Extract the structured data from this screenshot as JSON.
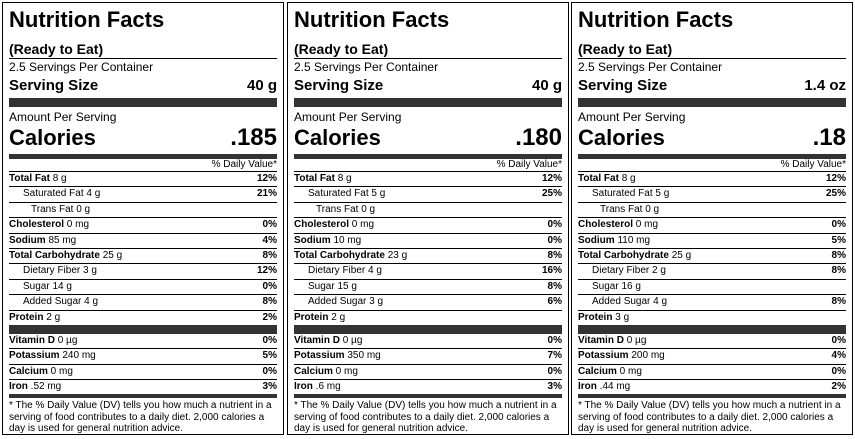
{
  "labels": [
    {
      "title": "Nutrition Facts",
      "subtitle": "(Ready to Eat)",
      "servings": "2.5 Servings Per Container",
      "serving_size_label": "Serving Size",
      "serving_size_value": "40 g",
      "amount_per_serving": "Amount Per Serving",
      "calories_label": "Calories",
      "calories_value": ".185",
      "dv_header": "% Daily Value*",
      "nutrients": [
        {
          "name": "Total Fat",
          "amount": " 8 g",
          "dv": "12%"
        },
        {
          "name": "Saturated Fat 4 g",
          "amount": "",
          "dv": "21%"
        },
        {
          "name": "Trans Fat 0 g",
          "amount": "",
          "dv": ""
        },
        {
          "name": "Cholesterol",
          "amount": " 0 mg",
          "dv": "0%"
        },
        {
          "name": "Sodium",
          "amount": " 85 mg",
          "dv": "4%"
        },
        {
          "name": "Total Carbohydrate",
          "amount": " 25 g",
          "dv": "8%"
        },
        {
          "name": "Dietary Fiber 3 g",
          "amount": "",
          "dv": "12%"
        },
        {
          "name": "Sugar 14 g",
          "amount": "",
          "dv": "0%"
        },
        {
          "name": "Added Sugar 4 g",
          "amount": "",
          "dv": "8%"
        },
        {
          "name": "Protein",
          "amount": " 2 g",
          "dv": "2%"
        }
      ],
      "vitamins": [
        {
          "name": "Vitamin D",
          "amount": " 0 µg",
          "dv": "0%"
        },
        {
          "name": "Potassium",
          "amount": " 240 mg",
          "dv": "5%"
        },
        {
          "name": "Calcium",
          "amount": " 0 mg",
          "dv": "0%"
        },
        {
          "name": "Iron",
          "amount": " .52 mg",
          "dv": "3%"
        }
      ],
      "footnote": "* The % Daily Value (DV) tells you how much a nutrient in a serving of food contributes to a daily diet. 2,000 calories a day is used for general nutrition advice."
    },
    {
      "title": "Nutrition Facts",
      "subtitle": "(Ready to Eat)",
      "servings": "2.5 Servings Per Container",
      "serving_size_label": "Serving Size",
      "serving_size_value": "40 g",
      "amount_per_serving": "Amount Per Serving",
      "calories_label": "Calories",
      "calories_value": ".180",
      "dv_header": "% Daily Value*",
      "nutrients": [
        {
          "name": "Total Fat",
          "amount": " 8 g",
          "dv": "12%"
        },
        {
          "name": "Saturated Fat 5 g",
          "amount": "",
          "dv": "25%"
        },
        {
          "name": "Trans Fat 0 g",
          "amount": "",
          "dv": ""
        },
        {
          "name": "Cholesterol",
          "amount": " 0 mg",
          "dv": "0%"
        },
        {
          "name": "Sodium",
          "amount": " 10 mg",
          "dv": "0%"
        },
        {
          "name": "Total Carbohydrate",
          "amount": " 23 g",
          "dv": "8%"
        },
        {
          "name": "Dietary Fiber 4 g",
          "amount": "",
          "dv": "16%"
        },
        {
          "name": "Sugar 15 g",
          "amount": "",
          "dv": "8%"
        },
        {
          "name": "Added Sugar 3 g",
          "amount": "",
          "dv": "6%"
        },
        {
          "name": "Protein",
          "amount": " 2 g",
          "dv": ""
        }
      ],
      "vitamins": [
        {
          "name": "Vitamin D",
          "amount": " 0 µg",
          "dv": "0%"
        },
        {
          "name": "Potassium",
          "amount": " 350 mg",
          "dv": "7%"
        },
        {
          "name": "Calcium",
          "amount": " 0 mg",
          "dv": "0%"
        },
        {
          "name": "Iron",
          "amount": " .6 mg",
          "dv": "3%"
        }
      ],
      "footnote": "* The % Daily Value (DV) tells you how much a nutrient in a serving of food contributes to a daily diet. 2,000 calories a day is used for general nutrition advice."
    },
    {
      "title": "Nutrition Facts",
      "subtitle": "(Ready to Eat)",
      "servings": "2.5 Servings Per Container",
      "serving_size_label": "Serving Size",
      "serving_size_value": "1.4 oz",
      "amount_per_serving": "Amount Per Serving",
      "calories_label": "Calories",
      "calories_value": ".18",
      "dv_header": "% Daily Value*",
      "nutrients": [
        {
          "name": "Total Fat",
          "amount": " 8 g",
          "dv": "12%"
        },
        {
          "name": "Saturated Fat 5 g",
          "amount": "",
          "dv": "25%"
        },
        {
          "name": "Trans Fat 0 g",
          "amount": "",
          "dv": ""
        },
        {
          "name": "Cholesterol",
          "amount": " 0 mg",
          "dv": "0%"
        },
        {
          "name": "Sodium",
          "amount": " 110 mg",
          "dv": "5%"
        },
        {
          "name": "Total Carbohydrate",
          "amount": " 25 g",
          "dv": "8%"
        },
        {
          "name": "Dietary Fiber 2 g",
          "amount": "",
          "dv": "8%"
        },
        {
          "name": "Sugar 16 g",
          "amount": "",
          "dv": ""
        },
        {
          "name": "Added Sugar 4 g",
          "amount": "",
          "dv": "8%"
        },
        {
          "name": "Protein",
          "amount": " 3 g",
          "dv": ""
        }
      ],
      "vitamins": [
        {
          "name": "Vitamin D",
          "amount": " 0 µg",
          "dv": "0%"
        },
        {
          "name": "Potassium",
          "amount": " 200 mg",
          "dv": "4%"
        },
        {
          "name": "Calcium",
          "amount": " 0 mg",
          "dv": "0%"
        },
        {
          "name": "Iron",
          "amount": " .44 mg",
          "dv": "2%"
        }
      ],
      "footnote": "* The % Daily Value (DV) tells you how much a nutrient in a serving of food contributes to a daily diet. 2,000 calories a day is used for general nutrition advice."
    }
  ]
}
